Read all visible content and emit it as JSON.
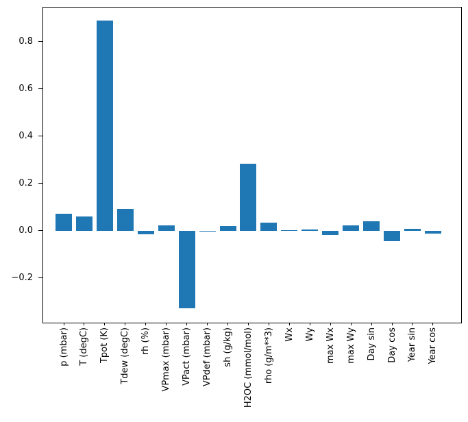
{
  "figure": {
    "background": "#ffffff"
  },
  "chart_data": {
    "type": "bar",
    "title": "",
    "xlabel": "",
    "ylabel": "",
    "categories": [
      "p (mbar)",
      "T (degC)",
      "Tpot (K)",
      "Tdew (degC)",
      "rh (%)",
      "VPmax (mbar)",
      "VPact (mbar)",
      "VPdef (mbar)",
      "sh (g/kg)",
      "H2OC (mmol/mol)",
      "rho (g/m**3)",
      "Wx",
      "Wy",
      "max Wx",
      "max Wy",
      "Day sin",
      "Day cos",
      "Year sin",
      "Year cos"
    ],
    "values": [
      0.073,
      0.059,
      0.888,
      0.093,
      -0.014,
      0.022,
      -0.327,
      -0.004,
      0.021,
      0.282,
      0.035,
      0.001,
      0.004,
      -0.019,
      0.024,
      0.041,
      -0.045,
      0.007,
      -0.013
    ],
    "series_color": "#1f77b4",
    "axis_color": "#000000",
    "text_color": "#000000",
    "yticks": [
      0.8,
      0.6,
      0.4,
      0.2,
      0.0,
      -0.2
    ],
    "ytick_labels": [
      "0.8",
      "0.6",
      "0.4",
      "0.2",
      "0.0",
      "−0.2"
    ],
    "ylim": [
      -0.388,
      0.945
    ],
    "bar_width_fraction": 0.8,
    "xtick_rotation_deg": 90,
    "grid": false,
    "legend": "none"
  }
}
